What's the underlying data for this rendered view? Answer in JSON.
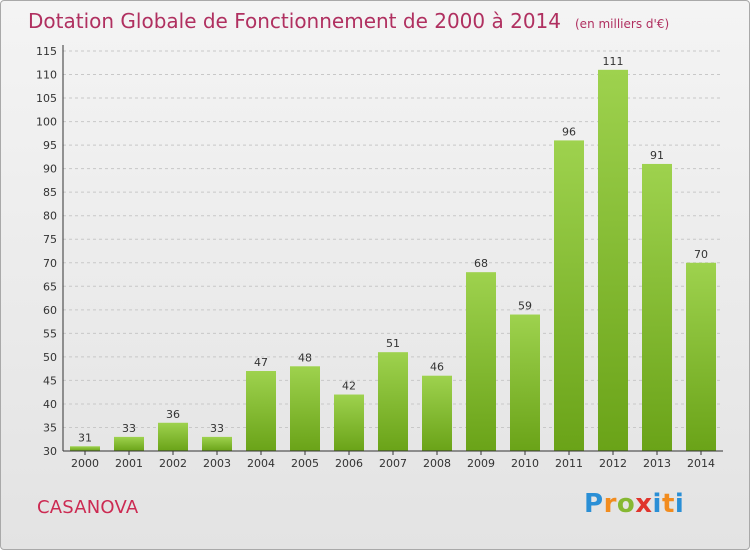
{
  "header": {
    "title": "Dotation Globale de Fonctionnement de 2000 à 2014",
    "unit": "(en milliers d'€)"
  },
  "footer": {
    "commune": "CASANOVA",
    "brand": "Proxiti"
  },
  "colors": {
    "title": "#b03060",
    "bar_light": "#9ed24e",
    "bar_dark": "#6aa318",
    "commune": "#cc2a52"
  },
  "chart_data": {
    "type": "bar",
    "title": "Dotation Globale de Fonctionnement de 2000 à 2014",
    "subtitle": "(en milliers d'€)",
    "categories": [
      "2000",
      "2001",
      "2002",
      "2003",
      "2004",
      "2005",
      "2006",
      "2007",
      "2008",
      "2009",
      "2010",
      "2011",
      "2012",
      "2013",
      "2014"
    ],
    "values": [
      31,
      33,
      36,
      33,
      47,
      48,
      42,
      51,
      46,
      68,
      59,
      96,
      111,
      91,
      70
    ],
    "ylim": [
      30,
      115
    ],
    "yticks": [
      30,
      35,
      40,
      45,
      50,
      55,
      60,
      65,
      70,
      75,
      80,
      85,
      90,
      95,
      100,
      105,
      110,
      115
    ],
    "grid": "horizontal-dashed",
    "legend": "none"
  }
}
